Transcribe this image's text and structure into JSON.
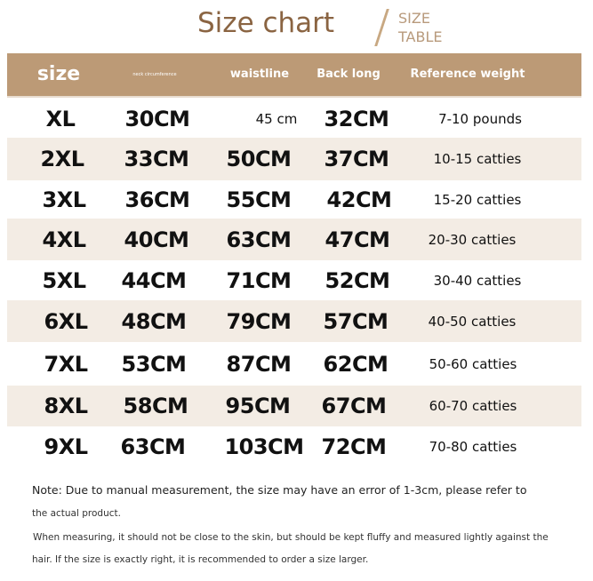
{
  "title": "Size chart",
  "subtitle_line1": "SIZE",
  "subtitle_line2": "TABLE",
  "colors": {
    "header_bg": "#bc9a76",
    "title": "#8a6442",
    "row_shade": "#f3ece4"
  },
  "headers": [
    "size",
    "neck circumference",
    "waistline",
    "Back long",
    "Reference weight"
  ],
  "rows": [
    [
      "XL",
      "30CM",
      "45 cm",
      "32CM",
      "7-10 pounds"
    ],
    [
      "2XL",
      "33CM",
      "50CM",
      "37CM",
      "10-15 catties"
    ],
    [
      "3XL",
      "36CM",
      "55CM",
      "42CM",
      "15-20 catties"
    ],
    [
      "4XL",
      "40CM",
      "63CM",
      "47CM",
      "20-30 catties"
    ],
    [
      "5XL",
      "44CM",
      "71CM",
      "52CM",
      "30-40 catties"
    ],
    [
      "6XL",
      "48CM",
      "79CM",
      "57CM",
      "40-50 catties"
    ],
    [
      "7XL",
      "53CM",
      "87CM",
      "62CM",
      "50-60 catties"
    ],
    [
      "8XL",
      "58CM",
      "95CM",
      "67CM",
      "60-70 catties"
    ],
    [
      "9XL",
      "63CM",
      "103CM",
      "72CM",
      "70-80 catties"
    ]
  ],
  "notes": [
    "Note: Due to manual measurement, the size may have an error of 1-3cm, please refer to",
    "the actual product.",
    "When measuring, it should not be close to the skin, but should be kept fluffy and measured lightly against the",
    "hair. If the size is exactly right, it is recommended to order a size larger."
  ]
}
